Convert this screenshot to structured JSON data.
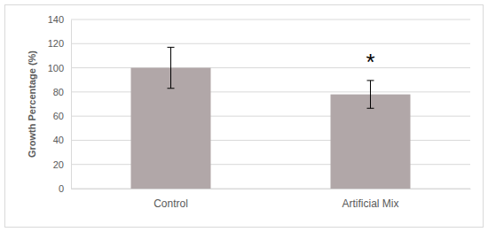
{
  "chart_data": {
    "type": "bar",
    "y_label": "Growth Percentage (%)",
    "categories": [
      "Control",
      "Artificial Mix"
    ],
    "values": [
      100,
      78
    ],
    "errors": [
      17,
      11.5
    ],
    "color": "#b1a7a8",
    "ylim": [
      0,
      140
    ],
    "yticks": [
      0,
      20,
      40,
      60,
      80,
      100,
      120,
      140
    ],
    "grid": true,
    "annotations": [
      {
        "text": "*",
        "category": 1
      }
    ]
  }
}
